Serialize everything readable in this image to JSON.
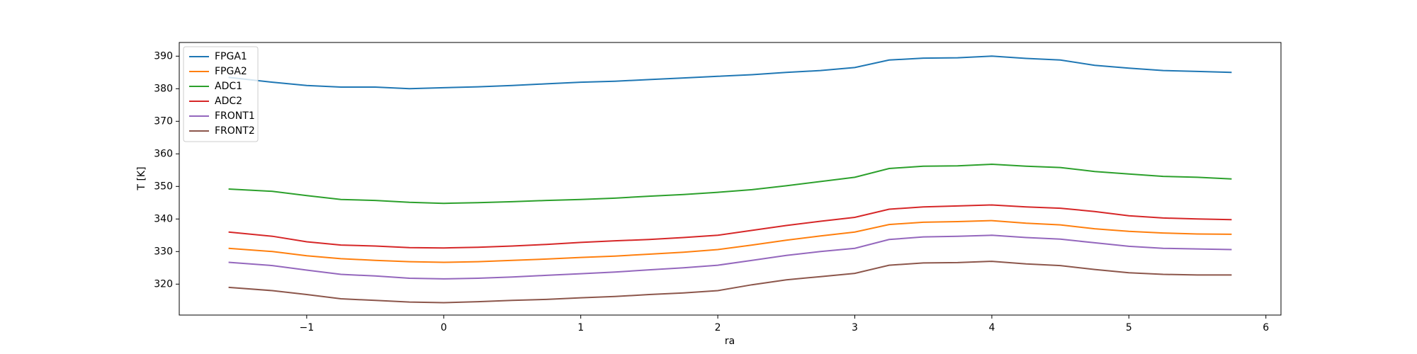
{
  "chart_data": {
    "type": "line",
    "xlabel": "ra",
    "ylabel": "T [K]",
    "x": [
      -1.57,
      -1.25,
      -1,
      -0.75,
      -0.5,
      -0.25,
      0,
      0.25,
      0.5,
      0.75,
      1,
      1.25,
      1.5,
      1.75,
      2,
      2.25,
      2.5,
      2.75,
      3,
      3.25,
      3.5,
      3.75,
      4,
      4.25,
      4.5,
      4.75,
      5,
      5.25,
      5.5,
      5.75
    ],
    "series": [
      {
        "name": "FPGA1",
        "color": "#1f77b4",
        "values": [
          383.5,
          382,
          381,
          380.5,
          380.5,
          380,
          380.3,
          380.6,
          381,
          381.5,
          382,
          382.3,
          382.8,
          383.3,
          383.8,
          384.3,
          385,
          385.6,
          386.5,
          388.8,
          389.4,
          389.5,
          390,
          389.3,
          388.8,
          387.2,
          386.3,
          385.6,
          385.3,
          385
        ]
      },
      {
        "name": "FPGA2",
        "color": "#ff7f0e",
        "values": [
          331,
          330,
          328.7,
          327.8,
          327.3,
          326.9,
          326.7,
          326.9,
          327.3,
          327.7,
          328.2,
          328.6,
          329.2,
          329.8,
          330.6,
          332,
          333.5,
          334.8,
          336,
          338.3,
          339,
          339.2,
          339.5,
          338.7,
          338.2,
          337,
          336.2,
          335.7,
          335.4,
          335.3
        ]
      },
      {
        "name": "ADC1",
        "color": "#2ca02c",
        "values": [
          349.2,
          348.5,
          347.2,
          346,
          345.7,
          345.1,
          344.8,
          345,
          345.3,
          345.7,
          346,
          346.4,
          347,
          347.5,
          348.2,
          349,
          350.2,
          351.5,
          352.8,
          355.5,
          356.2,
          356.3,
          356.8,
          356.2,
          355.8,
          354.6,
          353.8,
          353.1,
          352.8,
          352.3
        ]
      },
      {
        "name": "ADC2",
        "color": "#d62728",
        "values": [
          336,
          334.7,
          333,
          332,
          331.7,
          331.2,
          331.1,
          331.3,
          331.7,
          332.2,
          332.8,
          333.3,
          333.7,
          334.3,
          335,
          336.5,
          338,
          339.3,
          340.5,
          343,
          343.7,
          344,
          344.3,
          343.7,
          343.3,
          342.3,
          341,
          340.3,
          340,
          339.8
        ]
      },
      {
        "name": "FRONT1",
        "color": "#9467bd",
        "values": [
          326.7,
          325.7,
          324.3,
          323,
          322.5,
          321.8,
          321.6,
          321.8,
          322.2,
          322.7,
          323.2,
          323.7,
          324.4,
          325,
          325.8,
          327.3,
          328.8,
          330,
          331,
          333.7,
          334.5,
          334.7,
          335,
          334.3,
          333.8,
          332.7,
          331.6,
          331,
          330.8,
          330.6
        ]
      },
      {
        "name": "FRONT2",
        "color": "#8c564b",
        "values": [
          319,
          318,
          316.8,
          315.5,
          315,
          314.5,
          314.3,
          314.6,
          315,
          315.3,
          315.8,
          316.2,
          316.8,
          317.3,
          318,
          319.8,
          321.3,
          322.3,
          323.3,
          325.8,
          326.5,
          326.6,
          327,
          326.2,
          325.7,
          324.5,
          323.5,
          323,
          322.8,
          322.8
        ]
      }
    ],
    "xlim": [
      -1.93,
      6.11
    ],
    "ylim": [
      310.5,
      394.2
    ],
    "xticks": [
      {
        "value": -1,
        "label": "−1"
      },
      0,
      1,
      2,
      3,
      4,
      5,
      6
    ],
    "yticks": [
      320,
      330,
      340,
      350,
      360,
      370,
      380,
      390
    ],
    "legend": "upper left"
  }
}
